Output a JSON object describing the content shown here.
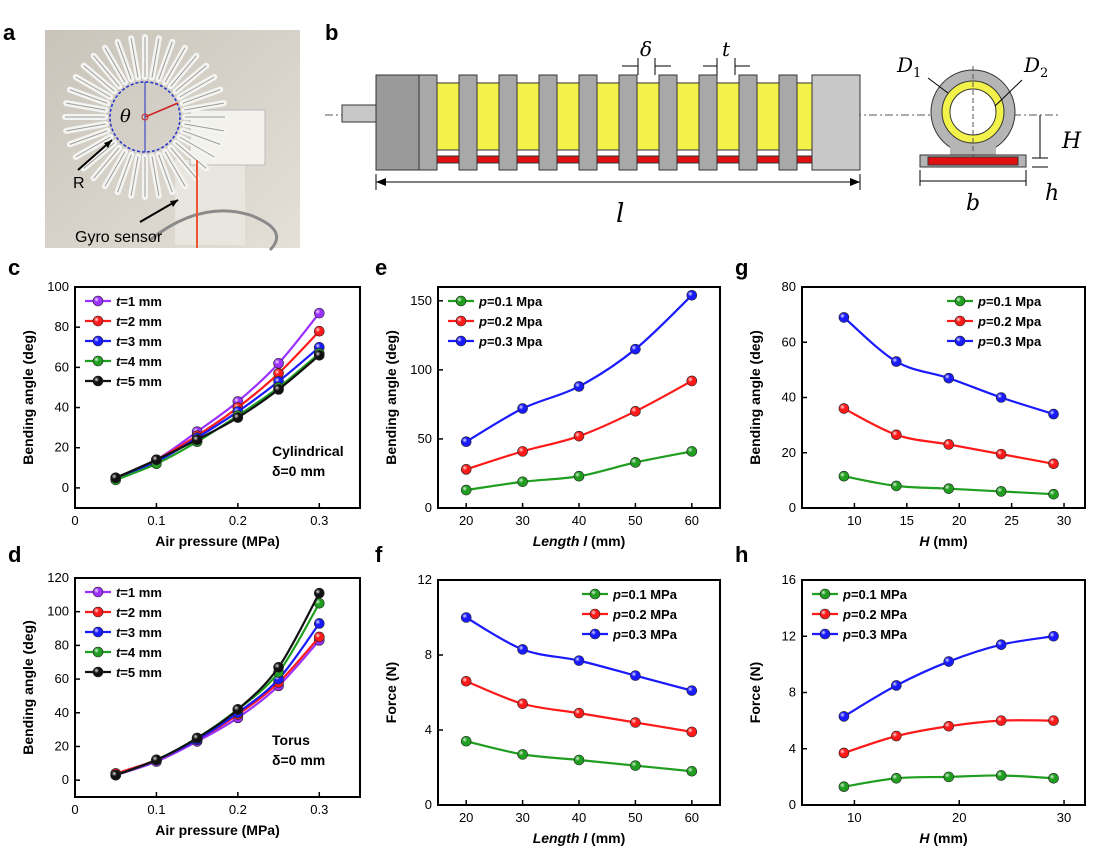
{
  "panel_labels": {
    "a": "a",
    "b": "b",
    "c": "c",
    "d": "d",
    "e": "e",
    "f": "f",
    "g": "g",
    "h": "h"
  },
  "photo": {
    "theta": "θ",
    "r_label": "R",
    "sensor_label": "Gyro sensor"
  },
  "schematic": {
    "delta": "δ",
    "t": "t",
    "l": "l",
    "D1": "D",
    "D1_sub": "1",
    "D2": "D",
    "D2_sub": "2",
    "H": "H",
    "h": "h",
    "b": "b"
  },
  "colors": {
    "purple": "#9b30ff",
    "red": "#ff1a1a",
    "blue": "#1a1aff",
    "green": "#1f9e1f",
    "black": "#111111",
    "yellow": "#f2f24a",
    "gray": "#b5b5b5",
    "strip": "#e01010"
  },
  "chart_data": [
    {
      "id": "c",
      "type": "line",
      "x": [
        0.05,
        0.1,
        0.15,
        0.2,
        0.25,
        0.3
      ],
      "xlabel": "Air pressure (MPa)",
      "ylabel": "Bending angle (deg)",
      "xlim": [
        0,
        0.35
      ],
      "ylim": [
        -10,
        100
      ],
      "xticks": [
        {
          "v": 0,
          "t": "0"
        },
        {
          "v": 0.1,
          "t": "0.1"
        },
        {
          "v": 0.2,
          "t": "0.2"
        },
        {
          "v": 0.3,
          "t": "0.3"
        }
      ],
      "yticks": [
        {
          "v": 0,
          "t": "0"
        },
        {
          "v": 20,
          "t": "20"
        },
        {
          "v": 40,
          "t": "40"
        },
        {
          "v": 60,
          "t": "60"
        },
        {
          "v": 80,
          "t": "80"
        },
        {
          "v": 100,
          "t": "100"
        }
      ],
      "legend_pos": "top-left",
      "annotation": [
        "Cylindrical",
        "δ=0 mm"
      ],
      "series": [
        {
          "var": "t",
          "name": "=1 mm",
          "color": "purple",
          "values": [
            5,
            14,
            28,
            43,
            62,
            87
          ]
        },
        {
          "var": "t",
          "name": "=2 mm",
          "color": "red",
          "values": [
            5,
            14,
            26,
            40,
            57,
            78
          ]
        },
        {
          "var": "t",
          "name": "=3 mm",
          "color": "blue",
          "values": [
            5,
            13,
            25,
            38,
            53,
            70
          ]
        },
        {
          "var": "t",
          "name": "=4 mm",
          "color": "green",
          "values": [
            4,
            12,
            23,
            36,
            50,
            67
          ]
        },
        {
          "var": "t",
          "name": "=5 mm",
          "color": "black",
          "values": [
            5,
            14,
            24,
            35,
            49,
            66
          ]
        }
      ]
    },
    {
      "id": "d",
      "type": "line",
      "x": [
        0.05,
        0.1,
        0.15,
        0.2,
        0.25,
        0.3
      ],
      "xlabel": "Air pressure (MPa)",
      "ylabel": "Bending angle (deg)",
      "xlim": [
        0,
        0.35
      ],
      "ylim": [
        -10,
        120
      ],
      "xticks": [
        {
          "v": 0,
          "t": "0"
        },
        {
          "v": 0.1,
          "t": "0.1"
        },
        {
          "v": 0.2,
          "t": "0.2"
        },
        {
          "v": 0.3,
          "t": "0.3"
        }
      ],
      "yticks": [
        {
          "v": 0,
          "t": "0"
        },
        {
          "v": 20,
          "t": "20"
        },
        {
          "v": 40,
          "t": "40"
        },
        {
          "v": 60,
          "t": "60"
        },
        {
          "v": 80,
          "t": "80"
        },
        {
          "v": 100,
          "t": "100"
        },
        {
          "v": 120,
          "t": "120"
        }
      ],
      "legend_pos": "top-left",
      "annotation": [
        "Torus",
        "δ=0 mm"
      ],
      "series": [
        {
          "var": "t",
          "name": "=1 mm",
          "color": "purple",
          "values": [
            3,
            11,
            23,
            37,
            56,
            83
          ]
        },
        {
          "var": "t",
          "name": "=2 mm",
          "color": "red",
          "values": [
            4,
            12,
            24,
            39,
            58,
            85
          ]
        },
        {
          "var": "t",
          "name": "=3 mm",
          "color": "blue",
          "values": [
            3,
            12,
            24,
            40,
            60,
            93
          ]
        },
        {
          "var": "t",
          "name": "=4 mm",
          "color": "green",
          "values": [
            3,
            12,
            25,
            42,
            64,
            105
          ]
        },
        {
          "var": "t",
          "name": "=5 mm",
          "color": "black",
          "values": [
            3,
            12,
            25,
            42,
            67,
            111
          ]
        }
      ]
    },
    {
      "id": "e",
      "type": "line",
      "x": [
        20,
        30,
        40,
        50,
        60
      ],
      "xlabel": "Length l",
      "xlabel_unit": " (mm)",
      "ylabel": "Bending angle (deg)",
      "xlim": [
        15,
        65
      ],
      "ylim": [
        0,
        160
      ],
      "xticks": [
        {
          "v": 20,
          "t": "20"
        },
        {
          "v": 30,
          "t": "30"
        },
        {
          "v": 40,
          "t": "40"
        },
        {
          "v": 50,
          "t": "50"
        },
        {
          "v": 60,
          "t": "60"
        }
      ],
      "yticks": [
        {
          "v": 0,
          "t": "0"
        },
        {
          "v": 50,
          "t": "50"
        },
        {
          "v": 100,
          "t": "100"
        },
        {
          "v": 150,
          "t": "150"
        }
      ],
      "legend_pos": "top-left",
      "series": [
        {
          "var": "p",
          "name": "=0.1 Mpa",
          "color": "green",
          "values": [
            13,
            19,
            23,
            33,
            41
          ]
        },
        {
          "var": "p",
          "name": "=0.2 Mpa",
          "color": "red",
          "values": [
            28,
            41,
            52,
            70,
            92
          ]
        },
        {
          "var": "p",
          "name": "=0.3 Mpa",
          "color": "blue",
          "values": [
            48,
            72,
            88,
            115,
            154
          ]
        }
      ]
    },
    {
      "id": "f",
      "type": "line",
      "x": [
        20,
        30,
        40,
        50,
        60
      ],
      "xlabel": "Length l",
      "xlabel_unit": " (mm)",
      "ylabel": "Force (N)",
      "xlim": [
        15,
        65
      ],
      "ylim": [
        0,
        12
      ],
      "xticks": [
        {
          "v": 20,
          "t": "20"
        },
        {
          "v": 30,
          "t": "30"
        },
        {
          "v": 40,
          "t": "40"
        },
        {
          "v": 50,
          "t": "50"
        },
        {
          "v": 60,
          "t": "60"
        }
      ],
      "yticks": [
        {
          "v": 0,
          "t": "0"
        },
        {
          "v": 4,
          "t": "4"
        },
        {
          "v": 8,
          "t": "8"
        },
        {
          "v": 12,
          "t": "12"
        }
      ],
      "legend_pos": "top-right",
      "series": [
        {
          "var": "p",
          "name": "=0.1 MPa",
          "color": "green",
          "values": [
            3.4,
            2.7,
            2.4,
            2.1,
            1.8
          ]
        },
        {
          "var": "p",
          "name": "=0.2 MPa",
          "color": "red",
          "values": [
            6.6,
            5.4,
            4.9,
            4.4,
            3.9
          ]
        },
        {
          "var": "p",
          "name": "=0.3 MPa",
          "color": "blue",
          "values": [
            10.0,
            8.3,
            7.7,
            6.9,
            6.1
          ]
        }
      ]
    },
    {
      "id": "g",
      "type": "line",
      "x": [
        9,
        14,
        19,
        24,
        29
      ],
      "xlabel": "H",
      "xlabel_unit": " (mm)",
      "ylabel": "Bending angle (deg)",
      "xlim": [
        5,
        32
      ],
      "ylim": [
        0,
        80
      ],
      "xticks": [
        {
          "v": 10,
          "t": "10"
        },
        {
          "v": 15,
          "t": "15"
        },
        {
          "v": 20,
          "t": "20"
        },
        {
          "v": 25,
          "t": "25"
        },
        {
          "v": 30,
          "t": "30"
        }
      ],
      "yticks": [
        {
          "v": 0,
          "t": "0"
        },
        {
          "v": 20,
          "t": "20"
        },
        {
          "v": 40,
          "t": "40"
        },
        {
          "v": 60,
          "t": "60"
        },
        {
          "v": 80,
          "t": "80"
        }
      ],
      "legend_pos": "top-right",
      "series": [
        {
          "var": "p",
          "name": "=0.1 Mpa",
          "color": "green",
          "values": [
            11.5,
            8,
            7,
            6,
            5
          ]
        },
        {
          "var": "p",
          "name": "=0.2 Mpa",
          "color": "red",
          "values": [
            36,
            26.5,
            23,
            19.5,
            16
          ]
        },
        {
          "var": "p",
          "name": "=0.3 Mpa",
          "color": "blue",
          "values": [
            69,
            53,
            47,
            40,
            34
          ]
        }
      ]
    },
    {
      "id": "h",
      "type": "line",
      "x": [
        9,
        14,
        19,
        24,
        29
      ],
      "xlabel": "H",
      "xlabel_unit": " (mm)",
      "ylabel": "Force (N)",
      "xlim": [
        5,
        32
      ],
      "ylim": [
        0,
        16
      ],
      "xticks": [
        {
          "v": 10,
          "t": "10"
        },
        {
          "v": 20,
          "t": "20"
        },
        {
          "v": 30,
          "t": "30"
        }
      ],
      "yticks": [
        {
          "v": 0,
          "t": "0"
        },
        {
          "v": 4,
          "t": "4"
        },
        {
          "v": 8,
          "t": "8"
        },
        {
          "v": 12,
          "t": "12"
        },
        {
          "v": 16,
          "t": "16"
        }
      ],
      "legend_pos": "top-left",
      "series": [
        {
          "var": "p",
          "name": "=0.1 MPa",
          "color": "green",
          "values": [
            1.3,
            1.9,
            2.0,
            2.1,
            1.9
          ]
        },
        {
          "var": "p",
          "name": "=0.2 MPa",
          "color": "red",
          "values": [
            3.7,
            4.9,
            5.6,
            6.0,
            6.0
          ]
        },
        {
          "var": "p",
          "name": "=0.3 MPa",
          "color": "blue",
          "values": [
            6.3,
            8.5,
            10.2,
            11.4,
            12.0
          ]
        }
      ]
    }
  ]
}
